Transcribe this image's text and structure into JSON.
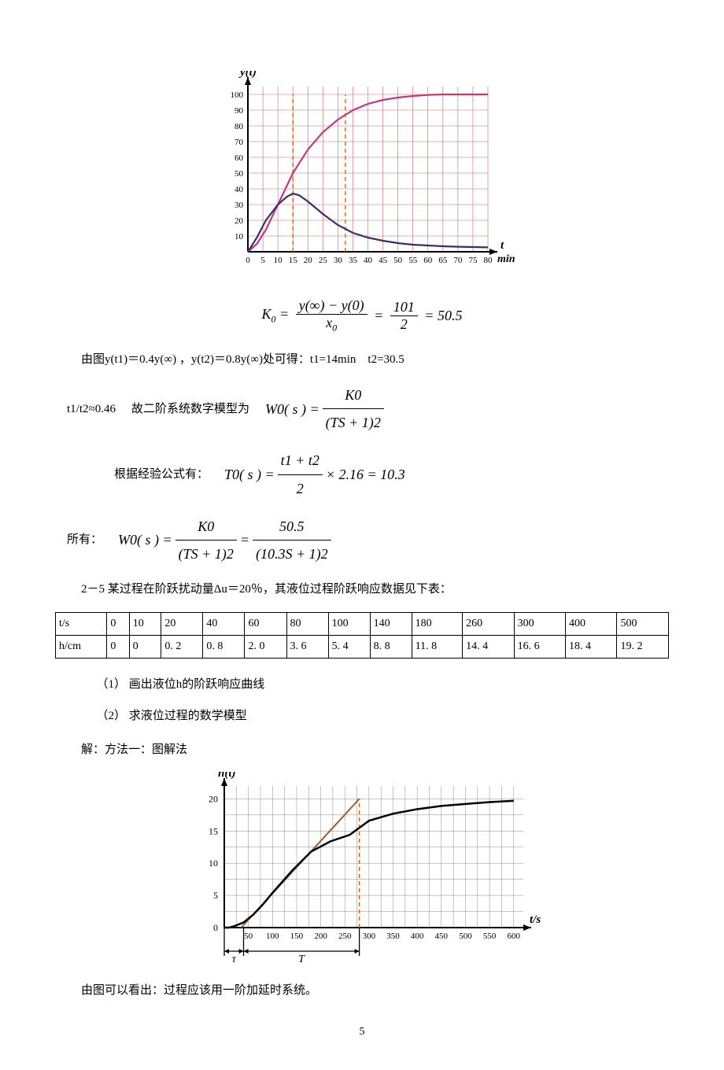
{
  "chart1": {
    "type": "line",
    "y_axis_label": "y(t)",
    "x_axis_label_top": "t",
    "x_axis_label_bottom": "min",
    "y_ticks": [
      10,
      20,
      30,
      40,
      50,
      60,
      70,
      80,
      90,
      100
    ],
    "x_ticks": [
      0,
      5,
      10,
      15,
      20,
      25,
      30,
      35,
      40,
      45,
      50,
      55,
      60,
      65,
      70,
      75,
      80
    ],
    "xlim": [
      0,
      80
    ],
    "ylim": [
      0,
      105
    ],
    "grid_color": "#cc6666",
    "axis_color": "#000000",
    "marker_x": [
      15,
      32.5
    ],
    "marker_color": "#d96c1f",
    "series": [
      {
        "name": "step_response",
        "color": "#c8377a",
        "width": 2.2,
        "points": [
          [
            0,
            0
          ],
          [
            3,
            5
          ],
          [
            6,
            14
          ],
          [
            10,
            30
          ],
          [
            15,
            50
          ],
          [
            20,
            65
          ],
          [
            25,
            76
          ],
          [
            30,
            84
          ],
          [
            35,
            90
          ],
          [
            40,
            94
          ],
          [
            45,
            96.5
          ],
          [
            50,
            98
          ],
          [
            55,
            99
          ],
          [
            60,
            99.7
          ],
          [
            65,
            100
          ],
          [
            70,
            100
          ],
          [
            75,
            100
          ],
          [
            80,
            100
          ]
        ]
      },
      {
        "name": "derivative",
        "color": "#3b2d6e",
        "width": 2.2,
        "points": [
          [
            0,
            0
          ],
          [
            3,
            9
          ],
          [
            6,
            20
          ],
          [
            10,
            30
          ],
          [
            13,
            35
          ],
          [
            15,
            37
          ],
          [
            17,
            36
          ],
          [
            20,
            32
          ],
          [
            25,
            24
          ],
          [
            30,
            17
          ],
          [
            35,
            12
          ],
          [
            40,
            9
          ],
          [
            45,
            7
          ],
          [
            50,
            5.5
          ],
          [
            55,
            4.5
          ],
          [
            60,
            4
          ],
          [
            65,
            3.5
          ],
          [
            70,
            3.2
          ],
          [
            75,
            3
          ],
          [
            80,
            2.8
          ]
        ]
      }
    ]
  },
  "eq1": {
    "lhs": "K",
    "lhs_sub": "0",
    "frac1_num": "y(∞) − y(0)",
    "frac1_den_var": "x",
    "frac1_den_sub": "0",
    "frac2_num": "101",
    "frac2_den": "2",
    "result": "50.5"
  },
  "line1": {
    "t1": "由图y(t1)＝0.4y(∞) ，y(t2)＝0.8y(∞)处可得：t1=14min",
    "t2": "t2=30.5"
  },
  "line2": {
    "pre": "t1/t2≈0.46",
    "mid": "故二阶系统数字模型为",
    "eq_lhs_var": "W",
    "eq_lhs_sub": "0",
    "eq_lhs_arg": "( s ) =",
    "eq_num_var": "K",
    "eq_num_sub": "0",
    "eq_den": "(TS + 1)",
    "eq_den_sup": "2"
  },
  "line3": {
    "pre": "根据经验公式有：",
    "eq_lhs_var": "T",
    "eq_lhs_sub": "0",
    "eq_lhs_arg": "( s ) =",
    "frac_num_a": "t",
    "frac_num_a_sub": "1",
    "frac_num_plus": " + ",
    "frac_num_b": "t",
    "frac_num_b_sub": "2",
    "frac_den": "2",
    "times": "× 2.16 = 10.3"
  },
  "line4": {
    "pre": "所有：",
    "eq_lhs_var": "W",
    "eq_lhs_sub": "0",
    "eq_lhs_arg": "( s ) =",
    "f1_num_var": "K",
    "f1_num_sub": "0",
    "f1_den": "(TS + 1)",
    "f1_den_sup": "2",
    "eq": " = ",
    "f2_num": "50.5",
    "f2_den": "(10.3S + 1)",
    "f2_den_sup": "2"
  },
  "problem25": {
    "title": "2－5 某过程在阶跃扰动量Δu＝20％，其液位过程阶跃响应数据见下表：",
    "row_labels": [
      "t/s",
      "h/cm"
    ],
    "t": [
      "0",
      "10",
      "20",
      "40",
      "60",
      "80",
      "100",
      "140",
      "180",
      "260",
      "300",
      "400",
      "500"
    ],
    "h": [
      "0",
      "0",
      "0. 2",
      "0. 8",
      "2. 0",
      "3. 6",
      "5. 4",
      "8. 8",
      "11. 8",
      "14. 4",
      "16. 6",
      "18. 4",
      "19. 2"
    ],
    "q1": "（1）   画出液位h的阶跃响应曲线",
    "q2": "（2）   求液位过程的数学模型",
    "sol": "解：方法一：图解法"
  },
  "chart2": {
    "type": "line",
    "y_axis_label": "h(t)",
    "x_axis_label": "t/s",
    "y_ticks": [
      0,
      5,
      10,
      15,
      20
    ],
    "x_ticks": [
      50,
      100,
      150,
      200,
      250,
      300,
      350,
      400,
      450,
      500,
      550,
      600
    ],
    "xlim": [
      0,
      620
    ],
    "ylim": [
      0,
      22
    ],
    "grid_color": "#888888",
    "axis_color": "#000000",
    "tau_label": "τ",
    "T_label": "T",
    "tau_x": 40,
    "T_end_x": 280,
    "marker_color": "#cc6600",
    "tangent": {
      "color": "#a05a2c",
      "width": 2.0,
      "points": [
        [
          35,
          0
        ],
        [
          280,
          20
        ]
      ]
    },
    "vline": {
      "x": 280,
      "color": "#cc6600"
    },
    "series": [
      {
        "name": "response",
        "color": "#000000",
        "width": 2.5,
        "points": [
          [
            0,
            0
          ],
          [
            10,
            0
          ],
          [
            20,
            0.2
          ],
          [
            40,
            0.8
          ],
          [
            60,
            2.0
          ],
          [
            80,
            3.6
          ],
          [
            100,
            5.4
          ],
          [
            140,
            8.8
          ],
          [
            180,
            11.8
          ],
          [
            220,
            13.4
          ],
          [
            260,
            14.4
          ],
          [
            300,
            16.6
          ],
          [
            350,
            17.7
          ],
          [
            400,
            18.4
          ],
          [
            450,
            18.9
          ],
          [
            500,
            19.2
          ],
          [
            550,
            19.5
          ],
          [
            600,
            19.7
          ]
        ]
      }
    ]
  },
  "final_line": "由图可以看出：过程应该用一阶加延时系统。",
  "page_number": "5"
}
